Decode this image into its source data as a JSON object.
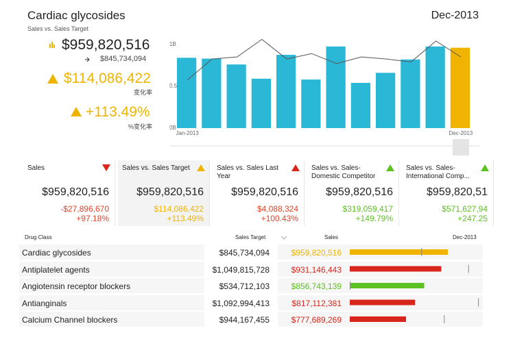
{
  "header": {
    "title": "Cardiac glycosides",
    "subtitle": "Sales vs. Sales Target",
    "period": "Dec-2013"
  },
  "summary": {
    "sales": "$959,820,516",
    "target": "$845,734,094",
    "change": "$114,086,422",
    "change_label": "变化率",
    "change_pct": "+113.49%",
    "change_pct_label": "%变化率",
    "color": "#f0b400"
  },
  "chart_data": {
    "type": "bar",
    "categories": [
      "Jan-2013",
      null,
      null,
      null,
      null,
      null,
      null,
      null,
      null,
      null,
      null,
      "Dec-2013"
    ],
    "values": [
      0.84,
      0.83,
      0.76,
      0.59,
      0.875,
      0.58,
      0.975,
      0.54,
      0.66,
      0.82,
      0.975,
      0.96
    ],
    "colors": [
      "#2ab8d6",
      "#2ab8d6",
      "#2ab8d6",
      "#2ab8d6",
      "#2ab8d6",
      "#2ab8d6",
      "#2ab8d6",
      "#2ab8d6",
      "#2ab8d6",
      "#2ab8d6",
      "#2ab8d6",
      "#f0b400"
    ],
    "line": {
      "values": [
        0.575,
        0.825,
        0.85,
        1.06,
        0.825,
        0.89,
        0.77,
        0.85,
        0.825,
        0.79,
        1.04,
        0.85
      ],
      "color": "#555555"
    },
    "ylim": [
      0,
      1.08
    ],
    "yticks": [
      {
        "value": 0,
        "label": "0B"
      },
      {
        "value": 0.5,
        "label": "0.5B"
      },
      {
        "value": 1,
        "label": "1B"
      }
    ]
  },
  "cards": [
    {
      "title": "Sales",
      "value": "$959,820,516",
      "delta": "-$27,896,670",
      "pct": "+97.18%",
      "color": "#e0442a",
      "arrow": "down",
      "arrow_color": "#d9261c",
      "selected": false
    },
    {
      "title": "Sales vs. Sales Target",
      "value": "$959,820,516",
      "delta": "$114,086,422",
      "pct": "+113.49%",
      "color": "#f0b400",
      "arrow": "up",
      "arrow_color": "#f0b400",
      "selected": true
    },
    {
      "title": "Sales vs. Sales Last Year",
      "value": "$959,820,516",
      "delta": "$4,088,324",
      "pct": "+100.43%",
      "color": "#e0442a",
      "arrow": "up",
      "arrow_color": "#d9261c",
      "selected": false
    },
    {
      "title": "Sales vs. Sales-Domestic Competitor",
      "value": "$959,820,516",
      "delta": "$319,059,417",
      "pct": "+149.79%",
      "color": "#5cc122",
      "arrow": "up",
      "arrow_color": "#5cc122",
      "selected": false
    },
    {
      "title": "Sales vs. Sales-International Comp...",
      "value": "$959,820,51",
      "delta": "$571,627,94",
      "pct": "+247.25",
      "color": "#5cc122",
      "arrow": "up",
      "arrow_color": "#5cc122",
      "selected": false
    }
  ],
  "table": {
    "columns": [
      "Drug Class",
      "Sales Target",
      "Sales",
      "Dec-2013"
    ],
    "bar_xlim": [
      533000000,
      1100000000
    ],
    "rows": [
      {
        "name": "Cardiac glycosides",
        "target": "$845,734,094",
        "sales": "$959,820,516",
        "target_amount": 845734094,
        "sales_amount": 959820516,
        "color": "#f0b400"
      },
      {
        "name": "Antiplatelet agents",
        "target": "$1,049,815,728",
        "sales": "$931,146,443",
        "target_amount": 1049815728,
        "sales_amount": 931146443,
        "color": "#d9261c"
      },
      {
        "name": "Angiotensin receptor blockers",
        "target": "$534,712,103",
        "sales": "$856,743,139",
        "target_amount": 534712103,
        "sales_amount": 856743139,
        "color": "#5cc122"
      },
      {
        "name": "Antianginals",
        "target": "$1,092,994,413",
        "sales": "$817,112,381",
        "target_amount": 1092994413,
        "sales_amount": 817112381,
        "color": "#d9261c"
      },
      {
        "name": "Calcium Channel blockers",
        "target": "$944,167,455",
        "sales": "$777,689,269",
        "target_amount": 944167455,
        "sales_amount": 777689269,
        "color": "#d9261c"
      }
    ]
  }
}
